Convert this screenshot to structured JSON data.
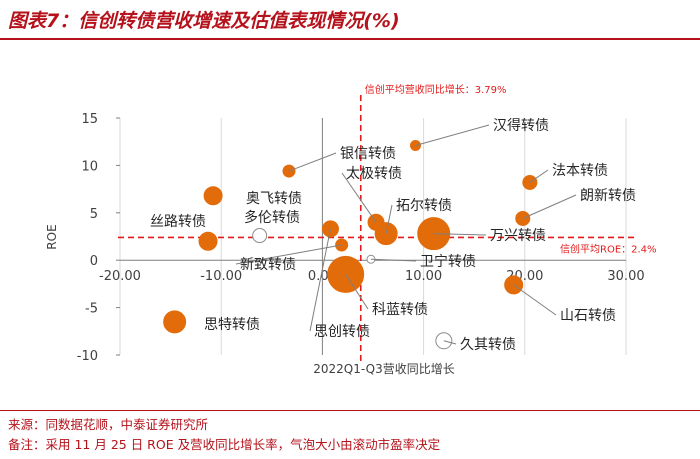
{
  "header": {
    "title": "图表7：信创转债营收增速及估值表现情况(%)"
  },
  "footer": {
    "source": "来源：同数据花顺，中泰证券研究所",
    "note": "备注：采用 11 月 25 日 ROE 及营收同比增长率，气泡大小由滚动市盈率决定"
  },
  "colors": {
    "accent": "#b5121b",
    "bubble": "#e36c0a",
    "refline": "#e41b1b",
    "leader": "#7f7f7f"
  },
  "chart_data": {
    "type": "scatter",
    "xlabel": "2022Q1-Q3营收同比增长",
    "ylabel": "ROE",
    "xlim": [
      -20,
      30
    ],
    "ylim": [
      -10,
      15
    ],
    "xticks": [
      "-20.00",
      "-10.00",
      "0.00",
      "10.00",
      "20.00",
      "30.00"
    ],
    "yticks": [
      "15",
      "10",
      "5",
      "0",
      "-5",
      "-10"
    ],
    "grid": "vertical",
    "reference_lines": {
      "x": {
        "value": 3.79,
        "label": "信创平均营收同比增长：3.79%"
      },
      "y": {
        "value": 2.4,
        "label": "信创平均ROE：2.4%"
      }
    },
    "points": [
      {
        "name": "汉得转债",
        "x": 9.2,
        "y": 12.1,
        "size": 5,
        "hollow": false
      },
      {
        "name": "银信转债",
        "x": -3.3,
        "y": 9.4,
        "size": 6,
        "hollow": false
      },
      {
        "name": "法本转债",
        "x": 20.5,
        "y": 8.2,
        "size": 7,
        "hollow": false
      },
      {
        "name": "太极转债",
        "x": 5.3,
        "y": 4.0,
        "size": 8,
        "hollow": false
      },
      {
        "name": "朗新转债",
        "x": 19.8,
        "y": 4.4,
        "size": 7,
        "hollow": false
      },
      {
        "name": "奥飞转债",
        "x": -10.8,
        "y": 6.8,
        "size": 9,
        "hollow": false
      },
      {
        "name": "拓尔转债",
        "x": 6.3,
        "y": 2.8,
        "size": 11,
        "hollow": false
      },
      {
        "name": "多伦转债",
        "x": -6.2,
        "y": 2.6,
        "size": 7,
        "hollow": true
      },
      {
        "name": "丝路转债",
        "x": -11.3,
        "y": 2.0,
        "size": 9,
        "hollow": false
      },
      {
        "name": "万兴转债",
        "x": 11.0,
        "y": 2.8,
        "size": 16,
        "hollow": false
      },
      {
        "name": "新致转债",
        "x": 1.9,
        "y": 1.6,
        "size": 6,
        "hollow": false
      },
      {
        "name": "卫宁转债",
        "x": 4.8,
        "y": 0.1,
        "size": 4,
        "hollow": true
      },
      {
        "name": "科蓝转债",
        "x": 2.3,
        "y": -1.5,
        "size": 18,
        "hollow": false
      },
      {
        "name": "山石转债",
        "x": 18.9,
        "y": -2.6,
        "size": 9,
        "hollow": false
      },
      {
        "name": "思特转债",
        "x": -14.6,
        "y": -6.5,
        "size": 11,
        "hollow": false
      },
      {
        "name": "思创转债",
        "x": 0.8,
        "y": 3.3,
        "size": 8,
        "hollow": false
      },
      {
        "name": "久其转债",
        "x": 12.0,
        "y": -8.5,
        "size": 8,
        "hollow": true
      }
    ]
  }
}
